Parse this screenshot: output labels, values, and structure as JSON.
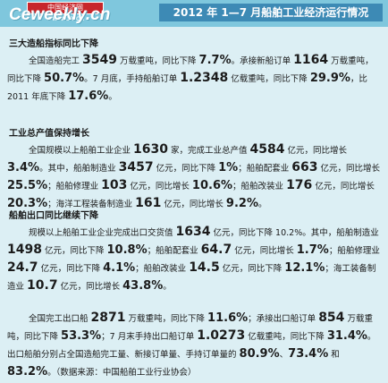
{
  "header": {
    "logo_top": "中国经济网 www.ce.cn",
    "logo_main": "Ceweekly.cn",
    "title": "2012 年 1—7 月船舶工业经济运行情况"
  },
  "sections": {
    "s1_title": "三大造船指标同比下降",
    "s1": {
      "t1": "全国造船完工 ",
      "v1": "3549",
      "t2": " 万载重吨，同比下降 ",
      "v2": "7.7%",
      "t3": "。承接新船订单 ",
      "v3": "1164",
      "t4": " 万载重吨，同比下降 ",
      "v4": "50.7%",
      "t5": "。7 月底，手持船舶订单 ",
      "v5": "1.2348",
      "t6": " 亿载重吨，同比下降 ",
      "v6": "29.9%",
      "t7": "，比 2011 年底下降 ",
      "v7": "17.6%",
      "t8": "。"
    },
    "s2_title": "工业总产值保持增长",
    "s2": {
      "t1": "全国规模以上船舶工业企业 ",
      "v1": "1630",
      "t2": " 家，完成工业总产值 ",
      "v2": "4584",
      "t3": " 亿元，同比增长 ",
      "v3": "3.4%",
      "t4": "。其中，船舶制造业 ",
      "v4": "3457",
      "t5": " 亿元，同比下降 ",
      "v5": "1%",
      "t6": "；船舶配套业 ",
      "v6": "663",
      "t7": " 亿元，同比增长 ",
      "v7": "25.5%",
      "t8": "；船舶修理业 ",
      "v8": "103",
      "t9": " 亿元，同比增长 ",
      "v9": "10.6%",
      "t10": "；船舶改装业 ",
      "v10": "176",
      "t11": " 亿元，同比增长 ",
      "v11": "20.3%",
      "t12": "；海洋工程装备制造业 ",
      "v12": "161",
      "t13": " 亿元，同比增长 ",
      "v13": "9.2%",
      "t14": "。"
    },
    "s3_title": "船舶出口同比继续下降",
    "s3": {
      "t1": "规模以上船舶工业企业完成出口交货值 ",
      "v1": "1634",
      "t2": " 亿元，同比下降 10.2%。其中，船舶制造业 ",
      "v2": "1498",
      "t3": " 亿元，同比下降 ",
      "v3": "10.8%",
      "t4": "；船舶配套业 ",
      "v4": "64.7",
      "t5": " 亿元，同比增长 ",
      "v5": "1.7%",
      "t6": "；船舶修理业 ",
      "v6": "24.7",
      "t7": " 亿元，同比下降 ",
      "v7": "4.1%",
      "t8": "；船舶改装业 ",
      "v8": "14.5",
      "t9": " 亿元，同比下降 ",
      "v9": "12.1%",
      "t10": "；海工装备制造业 ",
      "v10": "10.7",
      "t11": " 亿元，同比增长 ",
      "v11": "43.8%",
      "t12": "。"
    },
    "s4": {
      "t1": "全国完工出口船 ",
      "v1": "2871",
      "t2": " 万载重吨，同比下降 ",
      "v2": "11.6%",
      "t3": "；承接出口船订单 ",
      "v3": "854",
      "t4": " 万载重吨，同比下降 ",
      "v4": "53.3%",
      "t5": "；7 月末手持出口船订单 ",
      "v5": "1.0273",
      "t6": " 亿载重吨，同比下降 ",
      "v6": "31.4%",
      "t7": "。出口船舶分别占全国造船完工量、新接订单量、手持订单量的 ",
      "v7": "80.9%",
      "t8": "、",
      "v8": "73.4%",
      "t9": " 和 ",
      "v9": "83.2%",
      "t10": "。（数据来源：中国船舶工业行业协会）"
    }
  }
}
